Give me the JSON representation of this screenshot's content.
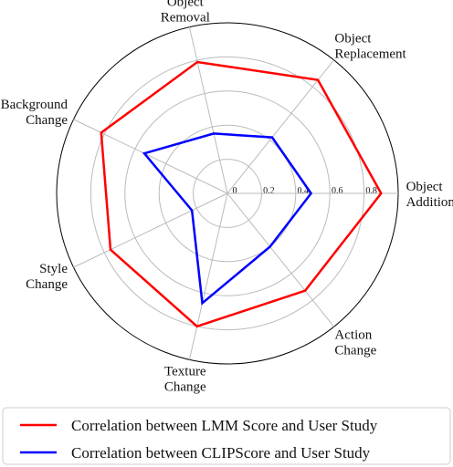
{
  "chart_data": {
    "type": "radar",
    "categories": [
      "Object Addition",
      "Object Replacement",
      "Object Removal",
      "Background Change",
      "Style Change",
      "Texture Change",
      "Action Change"
    ],
    "series": [
      {
        "name": "Correlation between LMM Score and User Study",
        "color": "#ff0000",
        "values": [
          0.9,
          0.85,
          0.79,
          0.82,
          0.76,
          0.8,
          0.73
        ]
      },
      {
        "name": "Correlation between CLIPScore and User Study",
        "color": "#0000ff",
        "values": [
          0.49,
          0.42,
          0.36,
          0.54,
          0.23,
          0.66,
          0.4
        ]
      }
    ],
    "rlim": [
      0,
      1
    ],
    "rticks": [
      0,
      0.2,
      0.4,
      0.6,
      0.8
    ],
    "grid": true,
    "legend": "bottom"
  }
}
